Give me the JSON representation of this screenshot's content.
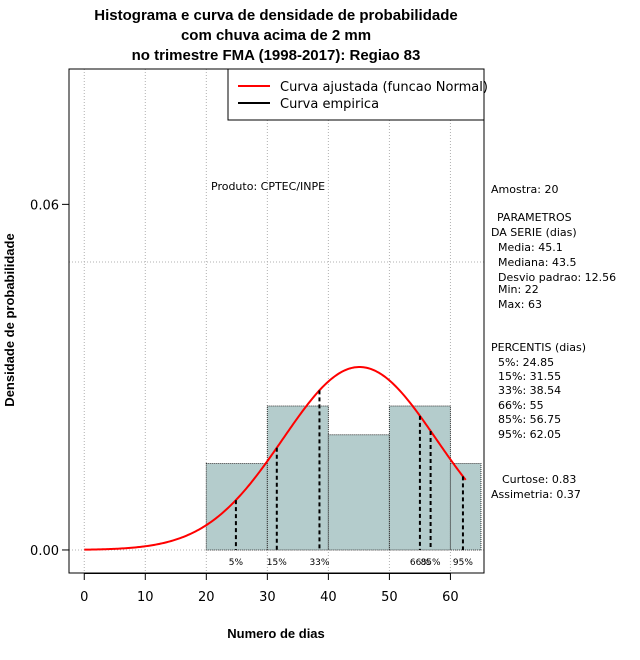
{
  "chart_data": {
    "type": "histogram",
    "title_lines": [
      "Histograma e curva de densidade de probabilidade",
      "com chuva acima de 2 mm",
      "no trimestre FMA (1998-2017): Regiao 83"
    ],
    "xlabel": "Numero de dias",
    "ylabel": "Densidade de probabilidade",
    "xlim": [
      -2.5,
      65.5
    ],
    "ylim": [
      -0.004,
      0.0835
    ],
    "x_ticks": [
      0,
      10,
      20,
      30,
      40,
      50,
      60
    ],
    "y_ticks": [
      0.0,
      0.06
    ],
    "y_tick_labels": [
      "0.00",
      "0.06"
    ],
    "grid": true,
    "x_grid": [
      0,
      10,
      20,
      30,
      40,
      50,
      60
    ],
    "y_grid": [
      0.0,
      0.05
    ],
    "bins": [
      {
        "start": 20,
        "end": 30,
        "density": 0.015
      },
      {
        "start": 30,
        "end": 40,
        "density": 0.025
      },
      {
        "start": 40,
        "end": 50,
        "density": 0.02
      },
      {
        "start": 50,
        "end": 60,
        "density": 0.025
      },
      {
        "start": 60,
        "end": 65,
        "density": 0.015
      }
    ],
    "fitted_curve": {
      "name": "Curva ajustada (funcao Normal)",
      "distribution": "normal",
      "mean": 45.1,
      "sd": 12.56,
      "x_start": 0,
      "x_end": 62.5,
      "color": "#ff0000"
    },
    "empirical_curve": {
      "name": "Curva empirica",
      "color": "#000000"
    },
    "percentile_lines": [
      {
        "label": "5%",
        "value": 24.85
      },
      {
        "label": "15%",
        "value": 31.55
      },
      {
        "label": "33%",
        "value": 38.54
      },
      {
        "label": "66%",
        "value": 55
      },
      {
        "label": "85%",
        "value": 56.75
      },
      {
        "label": "95%",
        "value": 62.05
      }
    ],
    "legend_position": "top-right",
    "product_note": "Produto: CPTEC/INPE",
    "bar_fill": "#b4cccc"
  },
  "stats": {
    "amostra": "Amostra: 20",
    "parametros_header_1": "PARAMETROS",
    "parametros_header_2": "DA SERIE (dias)",
    "media": "Media: 45.1",
    "mediana": "Mediana: 43.5",
    "desvio": "Desvio padrao: 12.56",
    "min": "Min: 22",
    "max": "Max: 63",
    "percentis_header": "PERCENTIS (dias)",
    "p5": "5%: 24.85",
    "p15": "15%: 31.55",
    "p33": "33%: 38.54",
    "p66": "66%: 55",
    "p85": "85%: 56.75",
    "p95": "95%: 62.05",
    "curtose": "Curtose: 0.83",
    "assimetria": "Assimetria: 0.37"
  }
}
